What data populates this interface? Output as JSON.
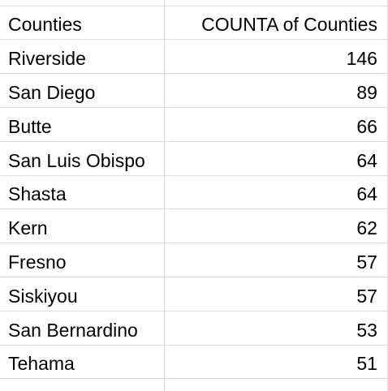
{
  "header": {
    "col_a": "Counties",
    "col_b": "COUNTA of Counties"
  },
  "rows": [
    {
      "county": "Riverside",
      "count": "146"
    },
    {
      "county": "San Diego",
      "count": "89"
    },
    {
      "county": "Butte",
      "count": "66"
    },
    {
      "county": "San Luis Obispo",
      "count": "64"
    },
    {
      "county": "Shasta",
      "count": "64"
    },
    {
      "county": "Kern",
      "count": "62"
    },
    {
      "county": "Fresno",
      "count": "57"
    },
    {
      "county": "Siskiyou",
      "count": "57"
    },
    {
      "county": "San Bernardino",
      "count": "53"
    },
    {
      "county": "Tehama",
      "count": "51"
    }
  ]
}
